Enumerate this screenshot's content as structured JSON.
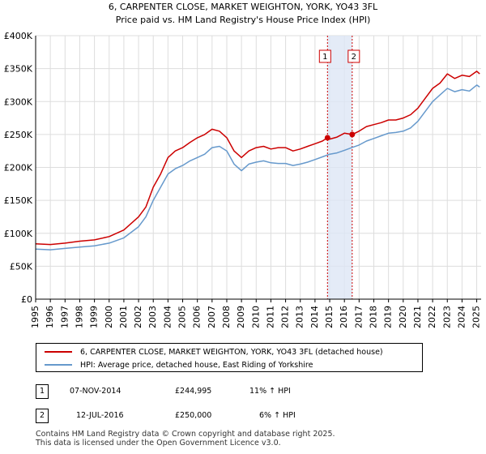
{
  "chart_data": {
    "type": "line",
    "title": "6, CARPENTER CLOSE, MARKET WEIGHTON, YORK, YO43 3FL",
    "subtitle": "Price paid vs. HM Land Registry's House Price Index (HPI)",
    "xlabel": "",
    "ylabel": "",
    "xlim": [
      1995,
      2025.3
    ],
    "ylim": [
      0,
      400000
    ],
    "x_ticks": [
      1995,
      1996,
      1997,
      1998,
      1999,
      2000,
      2001,
      2002,
      2003,
      2004,
      2005,
      2006,
      2007,
      2008,
      2009,
      2010,
      2011,
      2012,
      2013,
      2014,
      2015,
      2016,
      2017,
      2018,
      2019,
      2020,
      2021,
      2022,
      2023,
      2024,
      2025
    ],
    "y_ticks": [
      {
        "value": 0,
        "label": "£0"
      },
      {
        "value": 50000,
        "label": "£50K"
      },
      {
        "value": 100000,
        "label": "£100K"
      },
      {
        "value": 150000,
        "label": "£150K"
      },
      {
        "value": 200000,
        "label": "£200K"
      },
      {
        "value": 250000,
        "label": "£250K"
      },
      {
        "value": 300000,
        "label": "£300K"
      },
      {
        "value": 350000,
        "label": "£350K"
      },
      {
        "value": 400000,
        "label": "£400K"
      }
    ],
    "grid": true,
    "shaded_band": {
      "from": 2014.85,
      "to": 2016.53
    },
    "series": [
      {
        "name": "6, CARPENTER CLOSE, MARKET WEIGHTON, YORK, YO43 3FL (detached house)",
        "color": "#cc0000",
        "x": [
          1995,
          1996,
          1997,
          1998,
          1999,
          2000,
          2001,
          2002,
          2002.5,
          2003,
          2003.5,
          2004,
          2004.5,
          2005,
          2005.5,
          2006,
          2006.5,
          2007,
          2007.5,
          2008,
          2008.5,
          2009,
          2009.5,
          2010,
          2010.5,
          2011,
          2011.5,
          2012,
          2012.5,
          2013,
          2013.5,
          2014,
          2014.5,
          2014.85,
          2015,
          2015.5,
          2016,
          2016.53,
          2017,
          2017.5,
          2018,
          2018.5,
          2019,
          2019.5,
          2020,
          2020.5,
          2021,
          2021.5,
          2022,
          2022.5,
          2023,
          2023.5,
          2024,
          2024.5,
          2025,
          2025.2
        ],
        "values": [
          84000,
          83000,
          85000,
          88000,
          90000,
          95000,
          105000,
          125000,
          140000,
          170000,
          190000,
          215000,
          225000,
          230000,
          238000,
          245000,
          250000,
          258000,
          255000,
          245000,
          225000,
          215000,
          225000,
          230000,
          232000,
          228000,
          230000,
          230000,
          225000,
          228000,
          232000,
          236000,
          240000,
          244995,
          243000,
          246000,
          252000,
          250000,
          255000,
          262000,
          265000,
          268000,
          272000,
          272000,
          275000,
          280000,
          290000,
          305000,
          320000,
          328000,
          342000,
          335000,
          340000,
          338000,
          346000,
          342000
        ]
      },
      {
        "name": "HPI: Average price, detached house, East Riding of Yorkshire",
        "color": "#6699cc",
        "x": [
          1995,
          1996,
          1997,
          1998,
          1999,
          2000,
          2001,
          2002,
          2002.5,
          2003,
          2003.5,
          2004,
          2004.5,
          2005,
          2005.5,
          2006,
          2006.5,
          2007,
          2007.5,
          2008,
          2008.5,
          2009,
          2009.5,
          2010,
          2010.5,
          2011,
          2011.5,
          2012,
          2012.5,
          2013,
          2013.5,
          2014,
          2014.5,
          2015,
          2015.5,
          2016,
          2016.5,
          2017,
          2017.5,
          2018,
          2018.5,
          2019,
          2019.5,
          2020,
          2020.5,
          2021,
          2021.5,
          2022,
          2022.5,
          2023,
          2023.5,
          2024,
          2024.5,
          2025,
          2025.2
        ],
        "values": [
          76000,
          75000,
          77000,
          79000,
          81000,
          85000,
          93000,
          110000,
          125000,
          150000,
          170000,
          190000,
          198000,
          203000,
          210000,
          215000,
          220000,
          230000,
          232000,
          225000,
          205000,
          195000,
          205000,
          208000,
          210000,
          207000,
          206000,
          206000,
          203000,
          205000,
          208000,
          212000,
          216000,
          220000,
          222000,
          226000,
          230000,
          234000,
          240000,
          244000,
          248000,
          252000,
          253000,
          255000,
          260000,
          270000,
          285000,
          300000,
          310000,
          320000,
          315000,
          318000,
          316000,
          325000,
          322000
        ]
      }
    ],
    "sales": [
      {
        "marker": "1",
        "x": 2014.85,
        "value": 244995
      },
      {
        "marker": "2",
        "x": 2016.53,
        "value": 250000
      }
    ]
  },
  "legend": {
    "items": [
      {
        "label": "6, CARPENTER CLOSE, MARKET WEIGHTON, YORK, YO43 3FL (detached house)",
        "color": "#cc0000"
      },
      {
        "label": "HPI: Average price, detached house, East Riding of Yorkshire",
        "color": "#6699cc"
      }
    ]
  },
  "sales_table": [
    {
      "marker": "1",
      "date": "07-NOV-2014",
      "price": "£244,995",
      "hpi": "11% ↑ HPI"
    },
    {
      "marker": "2",
      "date": "12-JUL-2016",
      "price": "£250,000",
      "hpi": "6% ↑ HPI"
    }
  ],
  "footer": {
    "line1": "Contains HM Land Registry data © Crown copyright and database right 2025.",
    "line2": "This data is licensed under the Open Government Licence v3.0."
  }
}
